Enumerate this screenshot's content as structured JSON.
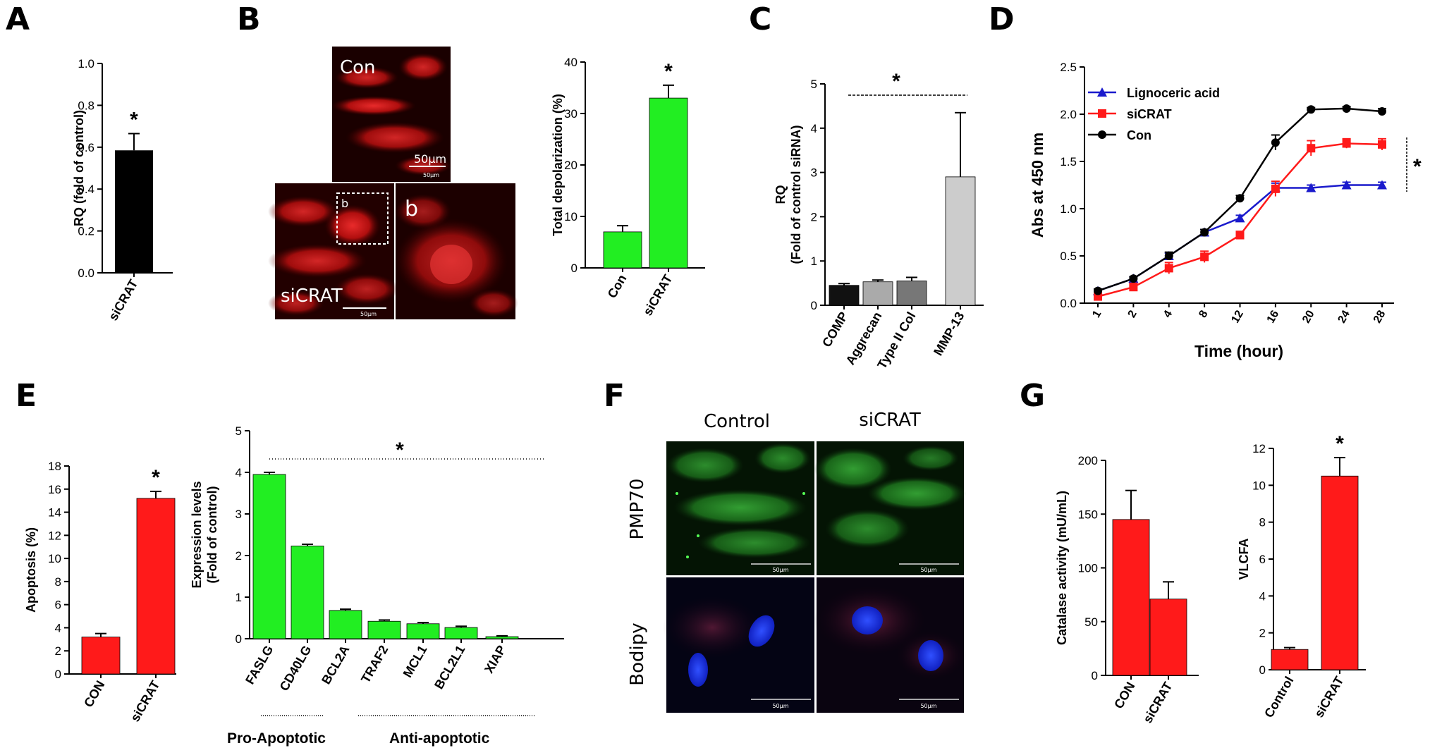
{
  "panel_letters": {
    "A": "A",
    "B": "B",
    "C": "C",
    "D": "D",
    "E": "E",
    "F": "F",
    "G": "G"
  },
  "colors": {
    "black": "#000000",
    "green": "#22ee22",
    "red": "#ff1a1a",
    "blue": "#1a1acc",
    "grey": "#bbbbbb"
  },
  "significance_mark": "*",
  "micrographs": {
    "B_con_label": "Con",
    "B_con_scale": "50µm",
    "B_con_scale_small": "50μm",
    "B_sicrat_label": "siCRAT",
    "B_sicrat_scale_small": "50μm",
    "B_inset_label": "b",
    "B_zoom_label": "b",
    "F_col_control": "Control",
    "F_col_sicrat": "siCRAT",
    "F_row_pmp70": "PMP70",
    "F_row_bodipy": "Bodipy",
    "F_scale": "50μm"
  },
  "group_labels": {
    "E_pro": "Pro-Apoptotic",
    "E_anti": "Anti-apoptotic"
  },
  "chart_data": [
    {
      "panel": "A",
      "type": "bar",
      "categories": [
        "siCRAT"
      ],
      "values": [
        0.585
      ],
      "errors": [
        0.08
      ],
      "ylabel": "RQ (fold of control)",
      "ylim": [
        0,
        1.0
      ],
      "yticks": [
        "0.0",
        "0.2",
        "0.4",
        "0.6",
        "0.8",
        "1.0"
      ],
      "color": "#000000",
      "sig": [
        "*"
      ]
    },
    {
      "panel": "B",
      "type": "bar",
      "categories": [
        "Con",
        "siCRAT"
      ],
      "values": [
        7.0,
        33.0
      ],
      "errors": [
        1.2,
        2.5
      ],
      "ylabel": "Total depolarization (%)",
      "ylim": [
        0,
        40
      ],
      "yticks": [
        "0",
        "10",
        "20",
        "30",
        "40"
      ],
      "color": "#22ee22",
      "sig": [
        "",
        "*"
      ]
    },
    {
      "panel": "C",
      "type": "bar",
      "categories": [
        "COMP",
        "Aggrecan",
        "Type II Col",
        "MMP-13"
      ],
      "values": [
        0.45,
        0.53,
        0.55,
        2.9
      ],
      "errors": [
        0.04,
        0.04,
        0.08,
        1.45
      ],
      "ylabel": "RQ (Fold of control siRNA)",
      "ylim": [
        0,
        5
      ],
      "yticks": [
        "0",
        "1",
        "2",
        "3",
        "4",
        "5"
      ],
      "colors": [
        "#111111",
        "#aaaaaa",
        "#777777",
        "#cccccc"
      ],
      "sig_text": "*"
    },
    {
      "panel": "D",
      "type": "line",
      "x": [
        "1",
        "2",
        "4",
        "8",
        "12",
        "16",
        "20",
        "24",
        "28"
      ],
      "xlabel": "Time (hour)",
      "ylabel": "Abs at 450 nm",
      "ylim": [
        0,
        2.5
      ],
      "yticks": [
        "0.0",
        "0.5",
        "1.0",
        "1.5",
        "2.0",
        "2.5"
      ],
      "legend_position": "top-left",
      "sig_text": "*",
      "series": [
        {
          "name": "Lignoceric acid",
          "color": "#1a1acc",
          "marker": "triangle",
          "values": [
            0.13,
            0.26,
            0.5,
            0.75,
            0.9,
            1.22,
            1.22,
            1.25,
            1.25
          ],
          "errors": [
            0.02,
            0.02,
            0.03,
            0.03,
            0.03,
            0.05,
            0.03,
            0.03,
            0.03
          ]
        },
        {
          "name": "siCRAT",
          "color": "#ff1a1a",
          "marker": "square",
          "values": [
            0.07,
            0.17,
            0.37,
            0.49,
            0.72,
            1.21,
            1.64,
            1.69,
            1.68
          ],
          "errors": [
            0.02,
            0.04,
            0.06,
            0.06,
            0.04,
            0.08,
            0.08,
            0.05,
            0.06
          ]
        },
        {
          "name": "Con",
          "color": "#000000",
          "marker": "circle",
          "values": [
            0.13,
            0.26,
            0.5,
            0.75,
            1.11,
            1.7,
            2.05,
            2.06,
            2.03
          ],
          "errors": [
            0.02,
            0.02,
            0.04,
            0.03,
            0.03,
            0.08,
            0.02,
            0.02,
            0.03
          ]
        }
      ]
    },
    {
      "panel": "E-left",
      "type": "bar",
      "categories": [
        "CON",
        "siCRAT"
      ],
      "values": [
        3.2,
        15.2
      ],
      "errors": [
        0.3,
        0.6
      ],
      "ylabel": "Apoptosis (%)",
      "ylim": [
        0,
        18
      ],
      "yticks": [
        "0",
        "2",
        "4",
        "6",
        "8",
        "10",
        "12",
        "14",
        "16",
        "18"
      ],
      "color": "#ff1a1a",
      "sig": [
        "",
        "*"
      ]
    },
    {
      "panel": "E-right",
      "type": "bar",
      "categories": [
        "FASLG",
        "CD40LG",
        "BCL2A",
        "TRAF2",
        "MCL1",
        "BCL2L1",
        "XIAP"
      ],
      "values": [
        3.95,
        2.23,
        0.68,
        0.42,
        0.36,
        0.27,
        0.05
      ],
      "errors": [
        0.05,
        0.04,
        0.03,
        0.03,
        0.03,
        0.03,
        0.02
      ],
      "ylabel": "Expression levels (Fold of control)",
      "ylim": [
        0,
        5
      ],
      "yticks": [
        "0",
        "1",
        "2",
        "3",
        "4",
        "5"
      ],
      "color": "#22ee22",
      "sig_text": "*"
    },
    {
      "panel": "G-left",
      "type": "bar",
      "categories": [
        "CON",
        "siCRAT"
      ],
      "values": [
        145,
        71
      ],
      "errors": [
        27,
        16
      ],
      "ylabel": "Catalase activity (mU/mL)",
      "ylim": [
        0,
        200
      ],
      "yticks": [
        "0",
        "50",
        "100",
        "150",
        "200"
      ],
      "color": "#ff1a1a",
      "sig": [
        "",
        ""
      ]
    },
    {
      "panel": "G-right",
      "type": "bar",
      "categories": [
        "Control",
        "siCRAT"
      ],
      "values": [
        1.1,
        10.5
      ],
      "errors": [
        0.1,
        1.0
      ],
      "ylabel": "VLCFA",
      "ylim": [
        0,
        12
      ],
      "yticks": [
        "0",
        "2",
        "4",
        "6",
        "8",
        "10",
        "12"
      ],
      "color": "#ff1a1a",
      "sig": [
        "",
        "*"
      ]
    }
  ]
}
